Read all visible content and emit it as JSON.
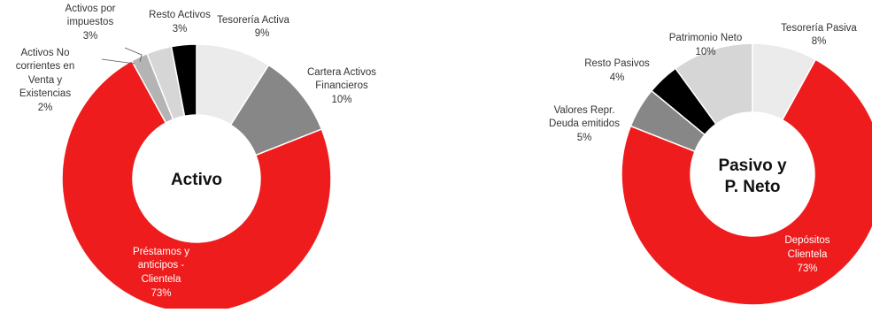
{
  "chart_data": [
    {
      "type": "pie",
      "donut": true,
      "center_label": [
        "Activo"
      ],
      "categories": [
        "Tesorería Activa",
        "Cartera Activos Financieros",
        "Préstamos y anticipos - Clientela",
        "Activos No corrientes en Venta y Existencias",
        "Activos por impuestos",
        "Resto Activos"
      ],
      "values": [
        9,
        10,
        73,
        2,
        3,
        3
      ],
      "value_labels": [
        "9%",
        "10%",
        "73%",
        "2%",
        "3%",
        "3%"
      ],
      "colors": [
        "#ebebeb",
        "#878787",
        "#ee1c1c",
        "#b4b4b4",
        "#d6d6d6",
        "#000000"
      ]
    },
    {
      "type": "pie",
      "donut": true,
      "center_label": [
        "Pasivo y",
        "P. Neto"
      ],
      "categories": [
        "Tesorería Pasiva",
        "Depósitos Clientela",
        "Valores Repr. Deuda emitidos",
        "Resto Pasivos",
        "Patrimonio Neto"
      ],
      "values": [
        8,
        73,
        5,
        4,
        10
      ],
      "value_labels": [
        "8%",
        "73%",
        "5%",
        "4%",
        "10%"
      ],
      "colors": [
        "#ebebeb",
        "#ee1c1c",
        "#878787",
        "#000000",
        "#d6d6d6"
      ]
    }
  ]
}
